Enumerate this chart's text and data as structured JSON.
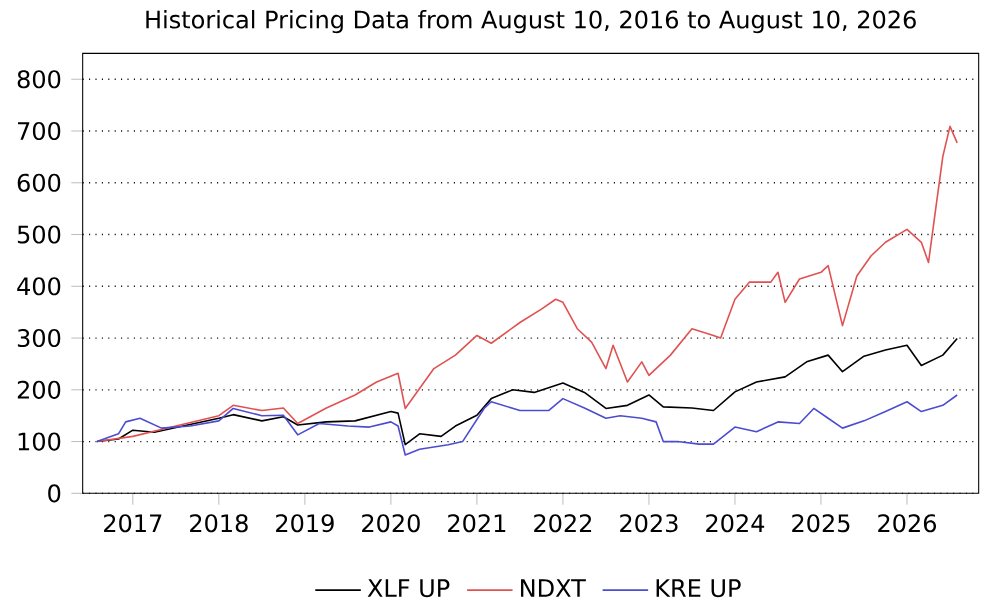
{
  "chart_data": {
    "type": "line",
    "title": "Historical Pricing Data from August 10, 2016 to August 10, 2026",
    "xlim": [
      "2016-06",
      "2026-11"
    ],
    "xticks": [
      "2017",
      "2018",
      "2019",
      "2020",
      "2021",
      "2022",
      "2023",
      "2024",
      "2025",
      "2026"
    ],
    "ylim": [
      0,
      850
    ],
    "yticks": [
      0,
      100,
      200,
      300,
      400,
      500,
      600,
      700,
      800
    ],
    "grid": "y",
    "legend": "bottom",
    "line_style": "solid",
    "series": [
      {
        "name": "XLF UP",
        "color": "#000000",
        "x": [
          "2016-08",
          "2016-11",
          "2017-01",
          "2017-04",
          "2017-08",
          "2018-01",
          "2018-03",
          "2018-07",
          "2018-10",
          "2018-12",
          "2019-04",
          "2019-08",
          "2020-01",
          "2020-02",
          "2020-03",
          "2020-05",
          "2020-08",
          "2020-10",
          "2021-01",
          "2021-03",
          "2021-06",
          "2021-09",
          "2022-01",
          "2022-04",
          "2022-07",
          "2022-10",
          "2023-01",
          "2023-03",
          "2023-07",
          "2023-10",
          "2024-01",
          "2024-04",
          "2024-08",
          "2024-11",
          "2025-02",
          "2025-04",
          "2025-07",
          "2025-10",
          "2026-01",
          "2026-03",
          "2026-06",
          "2026-08"
        ],
        "values": [
          100,
          105,
          122,
          118,
          130,
          145,
          152,
          140,
          148,
          132,
          138,
          140,
          158,
          155,
          94,
          115,
          110,
          130,
          151,
          183,
          200,
          195,
          213,
          195,
          164,
          170,
          190,
          167,
          165,
          160,
          196,
          215,
          225,
          254,
          267,
          235,
          265,
          277,
          286,
          247,
          267,
          299
        ]
      },
      {
        "name": "NDXT",
        "color": "#e05252",
        "x": [
          "2016-08",
          "2017-01",
          "2017-07",
          "2018-01",
          "2018-03",
          "2018-07",
          "2018-10",
          "2018-12",
          "2019-04",
          "2019-08",
          "2019-11",
          "2020-02",
          "2020-03",
          "2020-07",
          "2020-10",
          "2021-01",
          "2021-03",
          "2021-07",
          "2021-10",
          "2021-12",
          "2022-01",
          "2022-03",
          "2022-05",
          "2022-07",
          "2022-08",
          "2022-10",
          "2022-12",
          "2023-01",
          "2023-04",
          "2023-07",
          "2023-10",
          "2023-11",
          "2024-01",
          "2024-03",
          "2024-06",
          "2024-07",
          "2024-08",
          "2024-10",
          "2025-01",
          "2025-02",
          "2025-04",
          "2025-06",
          "2025-08",
          "2025-10",
          "2026-01",
          "2026-03",
          "2026-04",
          "2026-05",
          "2026-06",
          "2026-07",
          "2026-08"
        ],
        "values": [
          100,
          110,
          130,
          150,
          170,
          160,
          165,
          135,
          165,
          190,
          215,
          232,
          164,
          241,
          267,
          305,
          290,
          330,
          356,
          375,
          369,
          318,
          292,
          241,
          286,
          215,
          254,
          228,
          267,
          318,
          305,
          300,
          375,
          408,
          408,
          427,
          369,
          414,
          427,
          440,
          324,
          420,
          459,
          485,
          510,
          485,
          446,
          549,
          651,
          709,
          677
        ]
      },
      {
        "name": "KRE UP",
        "color": "#4c4cd0",
        "x": [
          "2016-08",
          "2016-11",
          "2016-12",
          "2017-02",
          "2017-05",
          "2017-09",
          "2018-01",
          "2018-03",
          "2018-07",
          "2018-10",
          "2018-12",
          "2019-03",
          "2019-07",
          "2019-10",
          "2020-01",
          "2020-02",
          "2020-03",
          "2020-05",
          "2020-09",
          "2020-11",
          "2021-02",
          "2021-03",
          "2021-07",
          "2021-11",
          "2022-01",
          "2022-04",
          "2022-07",
          "2022-09",
          "2022-12",
          "2023-02",
          "2023-03",
          "2023-05",
          "2023-08",
          "2023-10",
          "2024-01",
          "2024-04",
          "2024-07",
          "2024-10",
          "2024-12",
          "2025-02",
          "2025-04",
          "2025-07",
          "2025-10",
          "2026-01",
          "2026-03",
          "2026-06",
          "2026-08"
        ],
        "values": [
          100,
          115,
          138,
          145,
          126,
          130,
          140,
          164,
          150,
          151,
          113,
          135,
          130,
          128,
          138,
          130,
          74,
          85,
          94,
          100,
          164,
          177,
          160,
          160,
          183,
          165,
          145,
          150,
          145,
          138,
          100,
          100,
          95,
          95,
          128,
          119,
          138,
          135,
          164,
          145,
          126,
          140,
          158,
          177,
          158,
          170,
          190
        ]
      }
    ]
  }
}
